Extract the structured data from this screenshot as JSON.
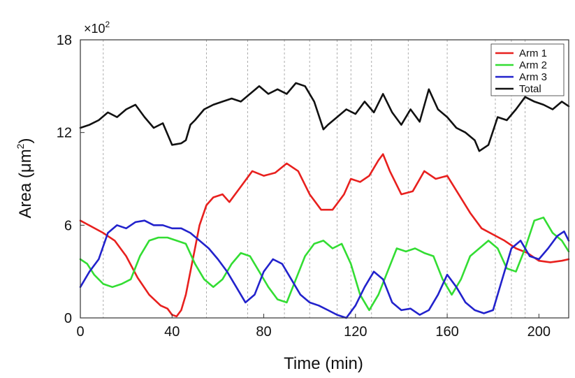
{
  "chart_data": {
    "type": "line",
    "xlabel": "Time (min)",
    "ylabel_main": "Area (μm",
    "ylabel_sup": "2",
    "ylabel_close": ")",
    "y_multiplier_base": "×10",
    "y_multiplier_exp": "2",
    "xlim": [
      0,
      213
    ],
    "ylim": [
      0,
      18
    ],
    "x_ticks": [
      0,
      40,
      80,
      120,
      160,
      200
    ],
    "x_tick_labels": [
      "0",
      "40",
      "80",
      "120",
      "160",
      "200"
    ],
    "y_ticks": [
      0,
      6,
      12,
      18
    ],
    "y_tick_labels": [
      "0",
      "6",
      "12",
      "18"
    ],
    "vertical_dashed_lines": [
      10,
      55,
      73,
      89,
      100,
      112,
      118,
      127,
      143,
      160,
      181,
      188,
      194
    ],
    "legend_position": "top-right",
    "grid": false,
    "series": [
      {
        "name": "Arm 1",
        "color": "#e8201e",
        "x": [
          0,
          5,
          10,
          15,
          20,
          25,
          30,
          35,
          38,
          40,
          42,
          44,
          46,
          48,
          50,
          52,
          55,
          58,
          62,
          65,
          70,
          75,
          80,
          85,
          90,
          95,
          100,
          105,
          110,
          115,
          118,
          122,
          126,
          130,
          132,
          135,
          140,
          145,
          150,
          155,
          160,
          165,
          170,
          175,
          180,
          185,
          190,
          195,
          200,
          205,
          210,
          213
        ],
        "values": [
          6.3,
          5.9,
          5.5,
          5.0,
          4.0,
          2.6,
          1.5,
          0.8,
          0.6,
          0.2,
          0.1,
          0.5,
          1.5,
          3.0,
          4.5,
          6.0,
          7.3,
          7.8,
          8.0,
          7.5,
          8.5,
          9.5,
          9.2,
          9.4,
          10.0,
          9.5,
          8.0,
          7.0,
          7.0,
          8.0,
          9.0,
          8.8,
          9.2,
          10.2,
          10.6,
          9.5,
          8.0,
          8.2,
          9.5,
          9.0,
          9.2,
          8.0,
          6.8,
          5.8,
          5.4,
          5.0,
          4.5,
          4.2,
          3.7,
          3.6,
          3.7,
          3.8
        ]
      },
      {
        "name": "Arm 2",
        "color": "#33dd33",
        "x": [
          0,
          3,
          6,
          10,
          14,
          18,
          22,
          26,
          30,
          34,
          38,
          42,
          46,
          50,
          54,
          58,
          62,
          66,
          70,
          74,
          78,
          82,
          86,
          90,
          94,
          98,
          102,
          106,
          110,
          114,
          118,
          122,
          126,
          130,
          134,
          138,
          142,
          146,
          150,
          154,
          158,
          162,
          166,
          170,
          174,
          178,
          182,
          186,
          190,
          194,
          198,
          202,
          206,
          210,
          213
        ],
        "values": [
          3.8,
          3.5,
          2.8,
          2.2,
          2.0,
          2.2,
          2.5,
          4.0,
          5.0,
          5.2,
          5.2,
          5.0,
          4.8,
          3.5,
          2.5,
          2.0,
          2.5,
          3.5,
          4.2,
          4.0,
          3.0,
          2.0,
          1.2,
          1.0,
          2.5,
          4.0,
          4.8,
          5.0,
          4.5,
          4.8,
          3.5,
          1.5,
          0.5,
          1.5,
          3.0,
          4.5,
          4.3,
          4.5,
          4.2,
          4.0,
          2.5,
          1.5,
          2.5,
          4.0,
          4.5,
          5.0,
          4.5,
          3.2,
          3.0,
          4.5,
          6.3,
          6.5,
          5.5,
          5.0,
          4.3
        ]
      },
      {
        "name": "Arm 3",
        "color": "#2222cc",
        "x": [
          0,
          4,
          8,
          12,
          16,
          20,
          24,
          28,
          32,
          36,
          40,
          44,
          48,
          52,
          56,
          60,
          64,
          68,
          72,
          76,
          80,
          84,
          88,
          92,
          96,
          100,
          104,
          108,
          112,
          116,
          120,
          124,
          128,
          132,
          136,
          140,
          144,
          148,
          152,
          156,
          160,
          164,
          168,
          172,
          176,
          180,
          184,
          188,
          192,
          196,
          200,
          204,
          208,
          211,
          213
        ],
        "values": [
          2.0,
          3.0,
          3.8,
          5.5,
          6.0,
          5.8,
          6.2,
          6.3,
          6.0,
          6.0,
          5.8,
          5.8,
          5.5,
          5.0,
          4.5,
          3.8,
          3.0,
          2.0,
          1.0,
          1.5,
          3.0,
          3.8,
          3.5,
          2.5,
          1.5,
          1.0,
          0.8,
          0.5,
          0.2,
          0.0,
          0.8,
          2.0,
          3.0,
          2.5,
          1.0,
          0.5,
          0.6,
          0.2,
          0.5,
          1.5,
          2.8,
          2.0,
          1.0,
          0.5,
          0.3,
          0.5,
          2.5,
          4.5,
          5.0,
          4.0,
          3.8,
          4.5,
          5.3,
          5.6,
          5.0
        ]
      },
      {
        "name": "Total",
        "color": "#111111",
        "x": [
          0,
          4,
          8,
          12,
          16,
          20,
          24,
          28,
          32,
          36,
          40,
          44,
          46,
          48,
          50,
          54,
          58,
          62,
          66,
          70,
          74,
          78,
          82,
          86,
          90,
          94,
          98,
          102,
          106,
          108,
          112,
          116,
          120,
          124,
          128,
          132,
          136,
          140,
          144,
          148,
          152,
          156,
          160,
          164,
          168,
          172,
          174,
          178,
          182,
          186,
          190,
          194,
          198,
          202,
          206,
          210,
          213
        ],
        "values": [
          12.3,
          12.5,
          12.8,
          13.3,
          13.0,
          13.5,
          13.8,
          13.0,
          12.3,
          12.6,
          11.2,
          11.3,
          11.5,
          12.5,
          12.8,
          13.5,
          13.8,
          14.0,
          14.2,
          14.0,
          14.5,
          15.0,
          14.5,
          14.8,
          14.5,
          15.2,
          15.0,
          14.0,
          12.2,
          12.5,
          13.0,
          13.5,
          13.2,
          14.0,
          13.3,
          14.5,
          13.3,
          12.5,
          13.5,
          12.7,
          14.8,
          13.5,
          13.0,
          12.3,
          12.0,
          11.5,
          10.8,
          11.2,
          13.0,
          12.8,
          13.5,
          14.3,
          14.0,
          13.8,
          13.5,
          14.0,
          13.7
        ]
      }
    ]
  }
}
